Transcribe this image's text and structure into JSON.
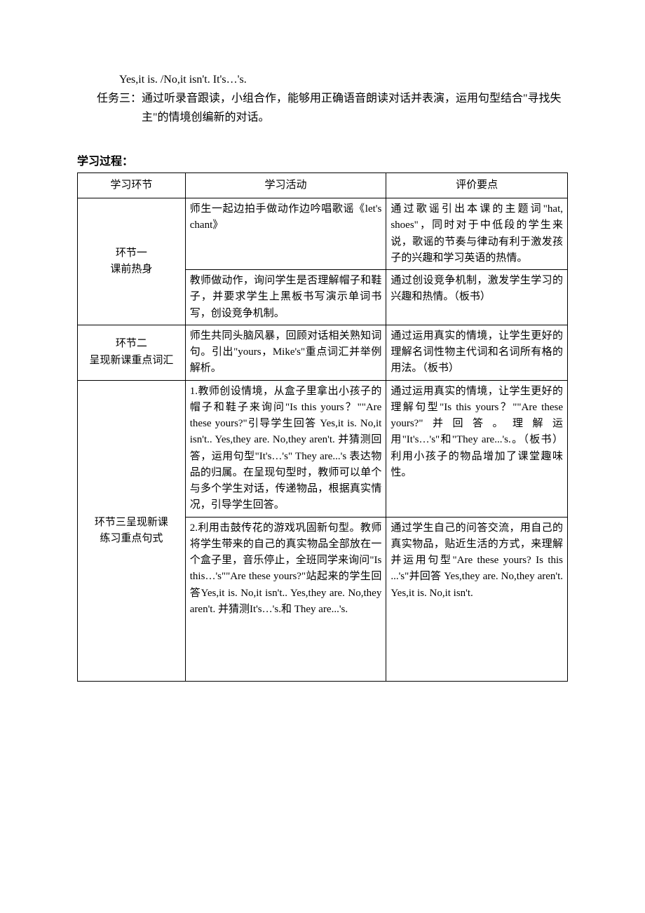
{
  "intro": {
    "line1": "Yes,it is. /No,it   isn't. It's…'s.",
    "task3_label": "任务三：",
    "task3_body": "通过听录音跟读，小组合作，能够用正确语音朗读对话并表演，运用句型结合\"寻找失主\"的情境创编新的对话。"
  },
  "section_title": "学习过程：",
  "table": {
    "headers": [
      "学习环节",
      "学习活动",
      "评价要点"
    ],
    "rows": [
      {
        "stage": "环节一\n课前热身",
        "stage_rowspan": 2,
        "activity": "师生一起边拍手做动作边吟唱歌谣《let's chant》",
        "evaluation": "通过歌谣引出本课的主题词\"hat, shoes\"，同时对于中低段的学生来说，歌谣的节奏与律动有利于激发孩子的兴趣和学习英语的热情。"
      },
      {
        "activity": "教师做动作，询问学生是否理解帽子和鞋子，并要求学生上黑板书写演示单词书写，创设竞争机制。",
        "evaluation": "通过创设竞争机制，激发学生学习的兴趣和热情。（板书）"
      },
      {
        "stage": "环节二\n呈现新课重点词汇",
        "stage_rowspan": 1,
        "activity": "师生共同头脑风暴，回顾对话相关熟知词句。引出\"yours，Mike's\"重点词汇并举例解析。",
        "evaluation": "通过运用真实的情境，让学生更好的理解名词性物主代词和名词所有格的用法。（板书）"
      },
      {
        "stage": "环节三呈现新课\n练习重点句式",
        "stage_rowspan": 2,
        "activity": "1.教师创设情境，从盒子里拿出小孩子的帽子和鞋子来询问\"Is this yours？\"\"Are these yours?\"引导学生回答 Yes,it is. No,it isn't..  Yes,they are. No,they aren't. 并猜测回答，运用句型\"It's…'s\" They   are...'s 表达物品的归属。在呈现句型时，教师可以单个与多个学生对话，传递物品，根据真实情况，引导学生回答。",
        "evaluation": "通过运用真实的情境，让学生更好的理解句型\"Is this yours？\"\"Are these yours?\"并回答。理解运用\"It's…'s\"和\"They   are...'s.。（板书）利用小孩子的物品增加了课堂趣味性。"
      },
      {
        "activity": "2.利用击鼓传花的游戏巩固新句型。教师将学生带来的自己的真实物品全部放在一个盒子里，音乐停止，全班同学来询问\"Is this…'s\"\"Are these yours?\"站起来的学生回答Yes,it is. No,it isn't..  Yes,they are. No,they aren't. 并猜测It's…'s.和 They   are...'s.",
        "evaluation": "通过学生自己的问答交流，用自己的真实物品，贴近生活的方式，来理解并运用句型\"Are these yours?   Is this ...'s\"并回答 Yes,they are. No,they aren't. Yes,it is. No,it isn't."
      }
    ]
  },
  "style": {
    "font_family": "SimSun",
    "font_size_body": 16,
    "font_size_table": 15,
    "border_color": "#000000",
    "background_color": "#ffffff",
    "text_color": "#000000"
  }
}
